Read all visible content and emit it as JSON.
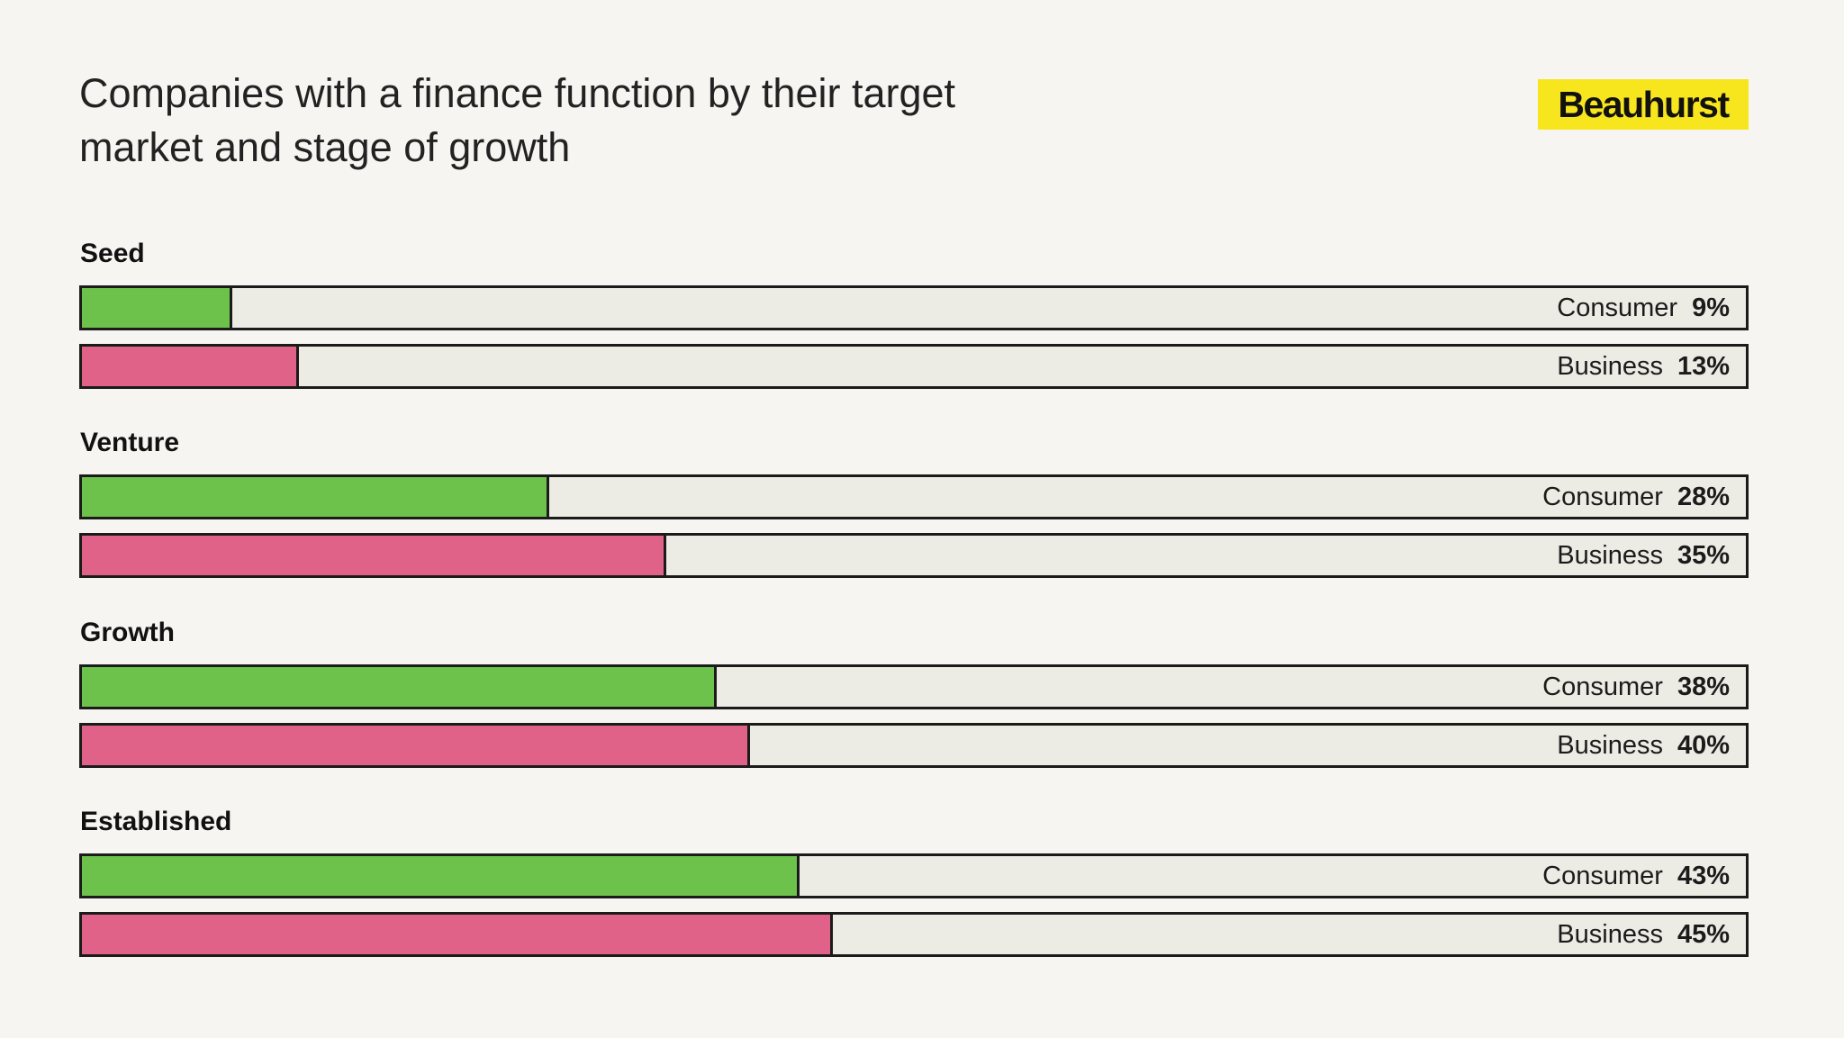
{
  "header": {
    "title": "Companies with a finance function by their target market and stage of growth",
    "logo_text": "Beauhurst",
    "logo_color": "#f7e51d"
  },
  "colors": {
    "consumer": "#6cc24a",
    "business": "#e06288",
    "track": "#ecebe4",
    "background": "#f6f5f1"
  },
  "chart_data": {
    "type": "bar",
    "orientation": "horizontal",
    "title": "Companies with a finance function by their target market and stage of growth",
    "categories": [
      "Seed",
      "Venture",
      "Growth",
      "Established"
    ],
    "series": [
      {
        "name": "Consumer",
        "values": [
          9,
          28,
          38,
          43
        ]
      },
      {
        "name": "Business",
        "values": [
          13,
          35,
          40,
          45
        ]
      }
    ],
    "value_labels": {
      "Consumer": [
        "9%",
        "28%",
        "38%",
        "43%"
      ],
      "Business": [
        "13%",
        "35%",
        "40%",
        "45%"
      ]
    },
    "unit": "%",
    "xlim": [
      0,
      100
    ],
    "grid": false,
    "legend": "none"
  }
}
